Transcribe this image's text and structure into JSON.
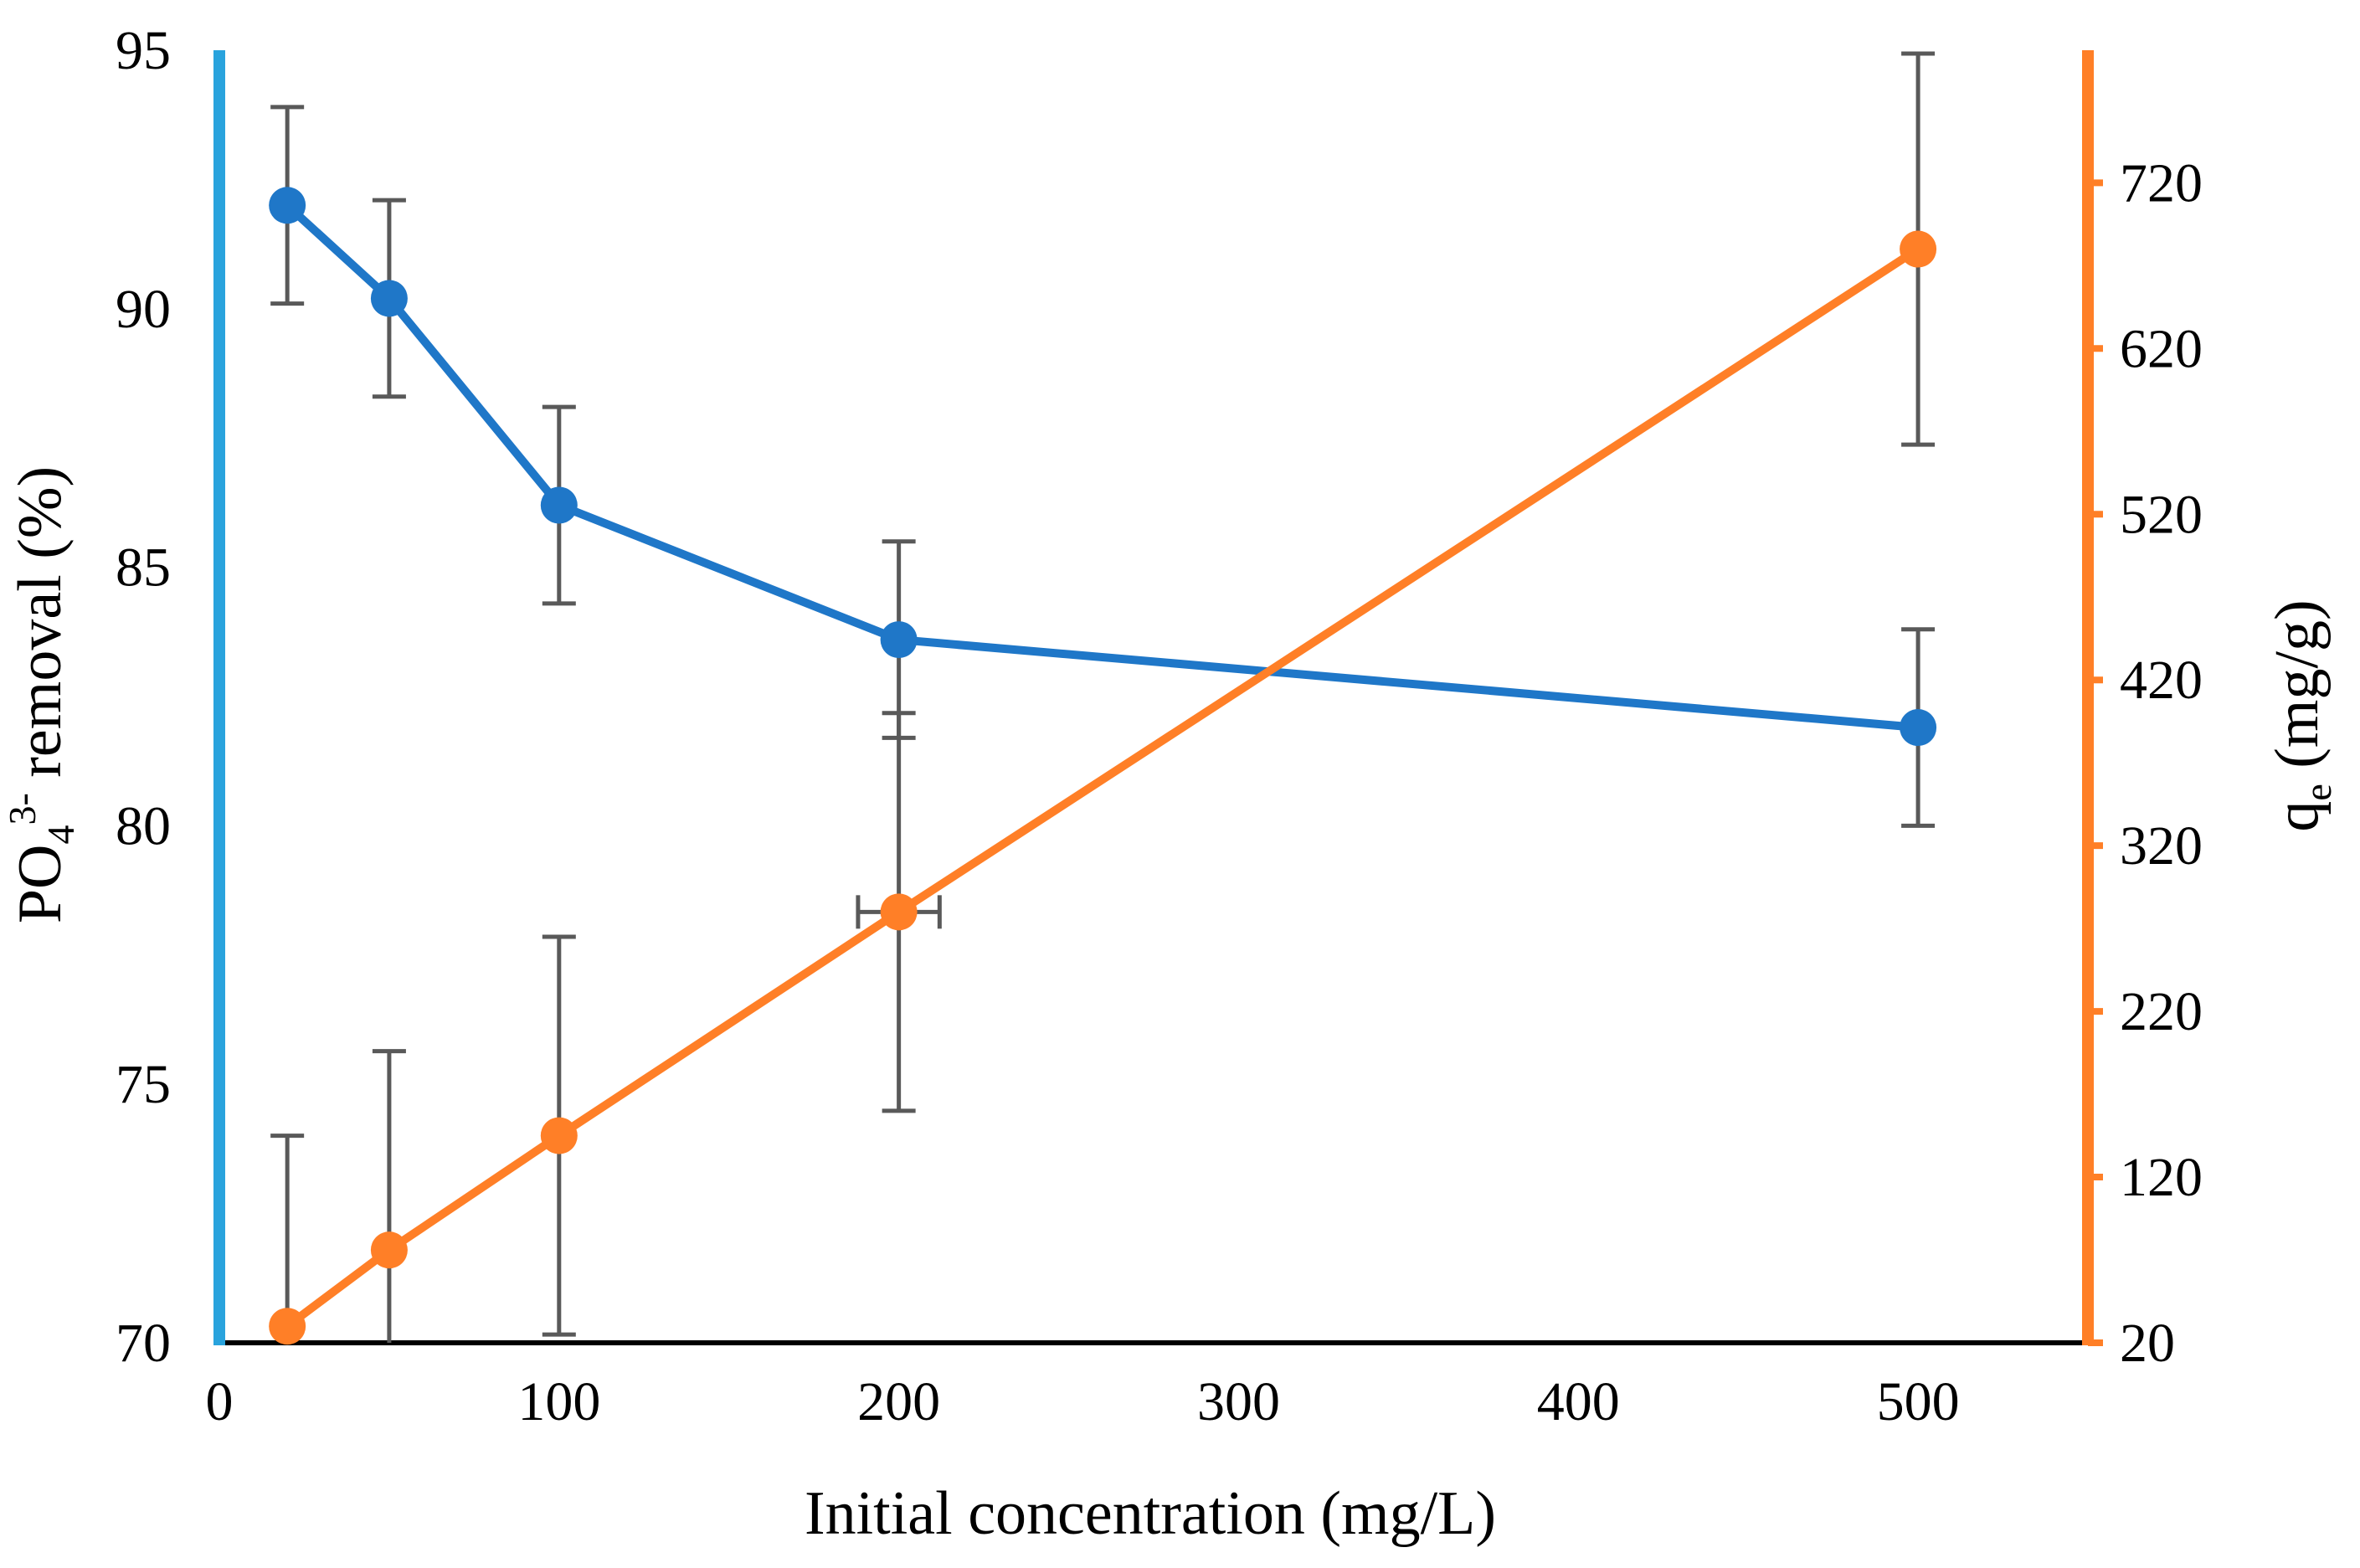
{
  "chart_data": {
    "type": "line",
    "xlabel": "Initial concentration (mg/L)",
    "ylabel_left": {
      "main": "PO",
      "sub": "4",
      "sup": "3-",
      "rest": " removal (%)"
    },
    "ylabel_right": {
      "main": "q",
      "sub": "e",
      "rest": " (mg/g)"
    },
    "x_axis": {
      "ticks": [
        "0",
        "100",
        "200",
        "300",
        "400",
        "500"
      ],
      "tick_positions": [
        0,
        100,
        200,
        300,
        400,
        500
      ],
      "range": [
        0,
        550
      ]
    },
    "y_left": {
      "range": [
        70,
        95
      ],
      "ticks": [
        70,
        75,
        80,
        85,
        90,
        95
      ]
    },
    "y_right": {
      "range": [
        20,
        800
      ],
      "ticks": [
        20,
        120,
        220,
        320,
        420,
        520,
        620,
        720
      ]
    },
    "grid": false,
    "legend": "none",
    "series": [
      {
        "axis": "left",
        "color": "#1f77c8",
        "points": [
          {
            "x": 20,
            "y": 92.0,
            "err": 1.9
          },
          {
            "x": 50,
            "y": 90.2,
            "err": 1.9
          },
          {
            "x": 100,
            "y": 86.2,
            "err": 1.9
          },
          {
            "x": 200,
            "y": 83.6,
            "err": 1.9
          },
          {
            "x": 500,
            "y": 81.9,
            "err": 1.9
          }
        ]
      },
      {
        "axis": "right",
        "color": "#ff7f27",
        "points": [
          {
            "x": 20,
            "y": 30,
            "err": 115
          },
          {
            "x": 50,
            "y": 76,
            "err": 120
          },
          {
            "x": 100,
            "y": 145,
            "err": 120
          },
          {
            "x": 200,
            "y": 280,
            "err": 120,
            "xerr": 12
          },
          {
            "x": 500,
            "y": 680,
            "err": 118
          }
        ]
      }
    ],
    "colors": {
      "left_axis": "#29a3dd",
      "right_axis": "#ff7f27",
      "error_bar": "#595959",
      "x_axis": "#000000"
    }
  }
}
